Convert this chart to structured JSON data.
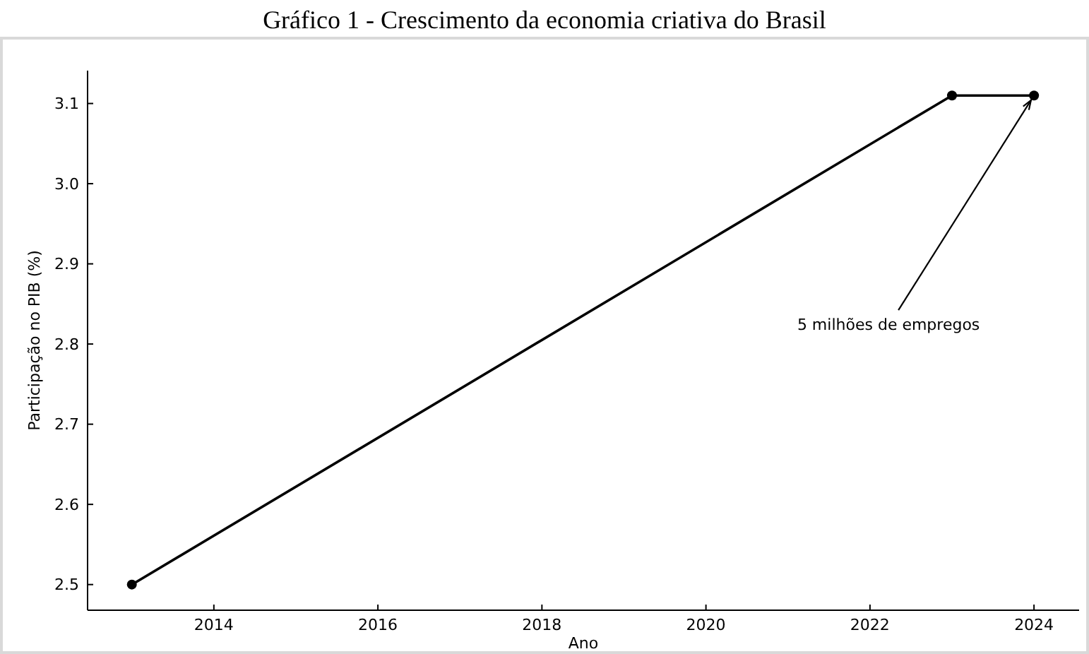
{
  "chart_data": {
    "type": "line",
    "title": "Gráfico 1 - Crescimento da economia criativa do Brasil",
    "xlabel": "Ano",
    "ylabel": "Participação no PIB (%)",
    "x": [
      2013,
      2023,
      2024
    ],
    "series": [
      {
        "color": "#000000",
        "values": [
          2.5,
          3.11,
          3.11
        ]
      }
    ],
    "xlim": [
      2012.46,
      2024.55
    ],
    "xticks": [
      2014,
      2016,
      2018,
      2020,
      2022,
      2024
    ],
    "ylim": [
      2.468,
      3.141
    ],
    "yticks": [
      {
        "value": 2.5,
        "label": "2.5"
      },
      {
        "value": 2.6,
        "label": "2.6"
      },
      {
        "value": 2.7,
        "label": "2.7"
      },
      {
        "value": 2.8,
        "label": "2.8"
      },
      {
        "value": 2.9,
        "label": "2.9"
      },
      {
        "value": 3.0,
        "label": "3.0"
      },
      {
        "value": 3.1,
        "label": "3.1"
      }
    ],
    "annotations": [
      {
        "text": "5 milhões de empregos",
        "x": 2024,
        "y": 3.11
      }
    ],
    "marker": "circle",
    "line_style": "solid",
    "grid": false
  }
}
